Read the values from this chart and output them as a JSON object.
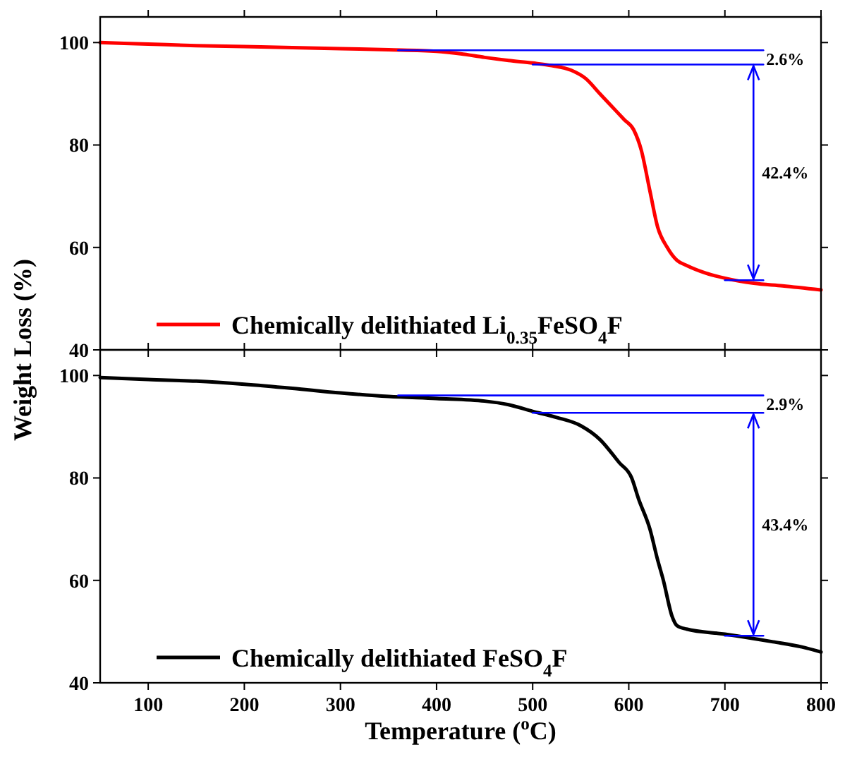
{
  "chart_data": [
    {
      "type": "line",
      "ylabel": "Weight Loss (%)",
      "xlim": [
        50,
        800
      ],
      "xticks": [
        100,
        200,
        300,
        400,
        500,
        600,
        700,
        800
      ],
      "ylim": [
        40,
        105
      ],
      "yticks": [
        40,
        60,
        80,
        100
      ],
      "tick_labels": "y",
      "legend": "bottom left",
      "grid": false,
      "series": [
        {
          "name": "Chemically delithiated Li$_{0.35}$FeSO$_{4}$F",
          "color": "#ff0000",
          "x": [
            50,
            100,
            150,
            200,
            250,
            300,
            350,
            400,
            425,
            450,
            475,
            500,
            520,
            540,
            555,
            570,
            580,
            595,
            605,
            613,
            622,
            630,
            640,
            650,
            660,
            680,
            700,
            730,
            760,
            800
          ],
          "values": [
            100,
            99.7,
            99.4,
            99.2,
            99,
            98.8,
            98.6,
            98.3,
            97.8,
            97.1,
            96.5,
            96,
            95.5,
            94.6,
            93,
            90,
            88,
            85,
            83,
            79,
            71,
            64,
            60,
            57.5,
            56.5,
            55,
            54,
            53,
            52.5,
            51.7
          ]
        },
        {
          "type": "line",
          "color": "#0000ff",
          "x": [
            360,
            740
          ],
          "values": [
            98.5,
            98.5
          ]
        },
        {
          "type": "line",
          "color": "#0000ff",
          "x": [
            500,
            740
          ],
          "values": [
            95.7,
            95.7
          ]
        },
        {
          "type": "line",
          "color": "#0000ff",
          "x": [
            700,
            740
          ],
          "values": [
            53.6,
            53.6
          ]
        }
      ],
      "annotations": [
        {
          "text": "2.6%",
          "x": 740,
          "y": 98.5
        },
        "42.4%"
      ]
    },
    {
      "type": "line",
      "xlabel": "Temperature ($^{o}$C)",
      "xlim": [
        50,
        800
      ],
      "xticks": [
        100,
        200,
        300,
        400,
        500,
        600,
        700,
        800
      ],
      "ylim": [
        40,
        105
      ],
      "yticks": [
        40,
        60,
        80,
        100
      ],
      "legend": "bottom left",
      "grid": false,
      "series": [
        {
          "name": "Chemically delithiated FeSO$_{4}$F",
          "color": "#000000",
          "x": [
            50,
            100,
            150,
            200,
            250,
            300,
            350,
            400,
            450,
            475,
            500,
            525,
            550,
            570,
            590,
            603,
            610,
            622,
            630,
            636,
            645,
            650,
            660,
            700,
            750,
            780,
            800
          ],
          "values": [
            99.6,
            99.2,
            98.9,
            98.3,
            97.5,
            96.6,
            95.9,
            95.5,
            95,
            94.3,
            93,
            91.8,
            90.2,
            87.5,
            83,
            80,
            76,
            70,
            64,
            60,
            53,
            51.2,
            50.5,
            49.5,
            48,
            47,
            46
          ]
        },
        {
          "type": "line",
          "color": "#0000ff",
          "x": [
            360,
            740
          ],
          "values": [
            96.1,
            96.1
          ]
        },
        {
          "type": "line",
          "color": "#0000ff",
          "x": [
            500,
            740
          ],
          "values": [
            92.7,
            92.7
          ]
        },
        {
          "type": "line",
          "color": "#0000ff",
          "x": [
            700,
            740
          ],
          "values": [
            49.2,
            49.2
          ]
        }
      ],
      "annotations": [
        {
          "text": "2.9%",
          "x": 740,
          "y": 96.1
        },
        "43.4%"
      ]
    }
  ]
}
